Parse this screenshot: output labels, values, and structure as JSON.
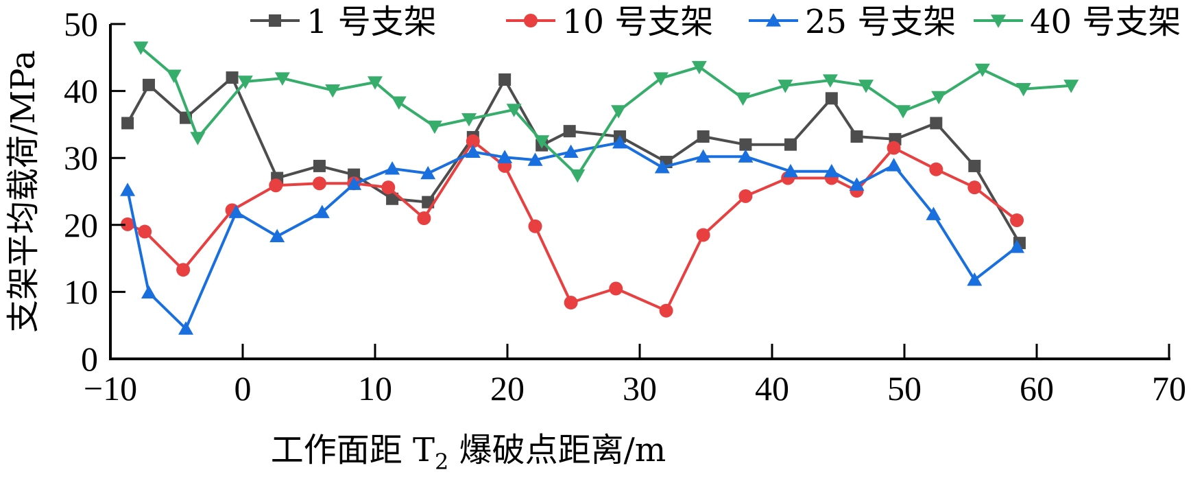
{
  "chart_data": {
    "type": "line",
    "title": "",
    "xlabel": "工作面距 T2 爆破点距离/m",
    "xlabel_parts": {
      "pre": "工作面距 T",
      "sub": "2",
      "post": " 爆破点距离/m"
    },
    "ylabel": "支架平均载荷/MPa",
    "xlim": [
      -10,
      70
    ],
    "ylim": [
      0,
      50
    ],
    "x_ticks": [
      -10,
      0,
      10,
      20,
      30,
      40,
      50,
      60,
      70
    ],
    "x_tick_labels": [
      "−10",
      "0",
      "10",
      "20",
      "30",
      "40",
      "50",
      "60",
      "70"
    ],
    "y_ticks": [
      0,
      10,
      20,
      30,
      40,
      50
    ],
    "y_tick_labels": [
      "0",
      "10",
      "20",
      "30",
      "40",
      "50"
    ],
    "grid": false,
    "legend_position": "top",
    "series": [
      {
        "name": "1 号支架",
        "color": "#4d4d4d",
        "marker": "square",
        "x": [
          -8.7,
          -7.1,
          -4.3,
          -0.8,
          2.6,
          5.8,
          8.4,
          11.3,
          14.0,
          17.4,
          19.8,
          22.6,
          24.7,
          28.5,
          32.0,
          34.8,
          38.0,
          41.4,
          44.5,
          46.4,
          49.3,
          52.4,
          55.3,
          58.7
        ],
        "y": [
          35.2,
          40.9,
          36.0,
          42.0,
          27.0,
          28.8,
          27.5,
          23.9,
          23.4,
          33.1,
          41.7,
          31.9,
          34.0,
          33.2,
          29.4,
          33.2,
          32.0,
          32.0,
          38.9,
          33.2,
          32.8,
          35.2,
          28.8,
          17.3
        ]
      },
      {
        "name": "10 号支架",
        "color": "#e84040",
        "marker": "circle",
        "x": [
          -8.7,
          -7.4,
          -4.5,
          -0.8,
          2.5,
          5.8,
          8.4,
          11.0,
          13.7,
          17.4,
          19.8,
          22.1,
          24.8,
          28.2,
          32.0,
          34.8,
          38.0,
          41.2,
          44.5,
          46.4,
          49.2,
          52.4,
          55.3,
          58.5
        ],
        "y": [
          20.1,
          19.0,
          13.3,
          22.2,
          25.9,
          26.2,
          26.2,
          25.6,
          21.0,
          32.5,
          28.8,
          19.8,
          8.4,
          10.5,
          7.2,
          18.5,
          24.3,
          27.0,
          27.0,
          25.1,
          31.5,
          28.3,
          25.6,
          20.7
        ]
      },
      {
        "name": "25 号支架",
        "color": "#1a6fdf",
        "marker": "triangle-up",
        "x": [
          -8.7,
          -7.1,
          -4.3,
          -0.5,
          2.6,
          6.0,
          8.4,
          11.3,
          14.0,
          17.4,
          19.8,
          22.1,
          24.8,
          28.5,
          31.7,
          34.8,
          38.0,
          41.4,
          44.5,
          46.4,
          49.2,
          52.2,
          55.3,
          58.5
        ],
        "y": [
          25.2,
          9.9,
          4.5,
          21.9,
          18.3,
          21.9,
          26.1,
          28.4,
          27.7,
          30.9,
          30.1,
          29.7,
          30.9,
          32.3,
          28.6,
          30.2,
          30.2,
          28.0,
          28.0,
          26.0,
          28.9,
          21.6,
          11.8,
          16.7
        ]
      },
      {
        "name": "40 号支架",
        "color": "#37ad6b",
        "marker": "triangle-down",
        "x": [
          -7.7,
          -5.2,
          -3.4,
          0.2,
          3.0,
          6.8,
          10.0,
          11.8,
          14.5,
          17.1,
          20.5,
          22.6,
          25.3,
          28.4,
          31.6,
          34.5,
          37.8,
          41.0,
          44.4,
          47.1,
          49.9,
          52.6,
          55.9,
          59.0,
          62.6
        ],
        "y": [
          46.5,
          42.3,
          33.0,
          41.4,
          41.9,
          40.1,
          41.3,
          38.3,
          34.7,
          35.8,
          37.2,
          32.5,
          27.4,
          37.0,
          41.9,
          43.6,
          38.9,
          40.8,
          41.6,
          40.8,
          37.0,
          39.1,
          43.2,
          40.3,
          40.8
        ]
      }
    ]
  }
}
